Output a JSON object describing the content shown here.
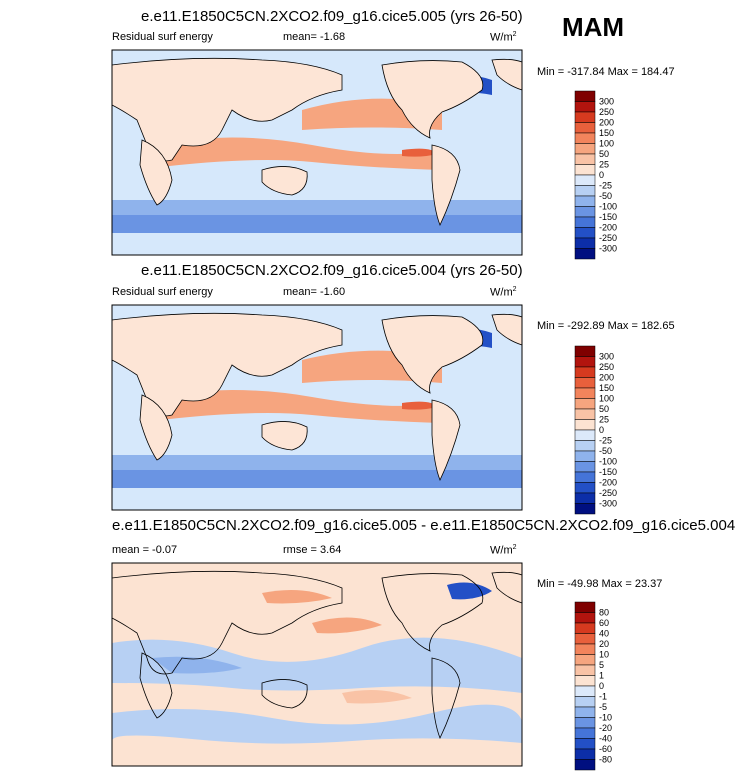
{
  "season": "MAM",
  "panels": [
    {
      "title": "e.e11.E1850C5CN.2XCO2.f09_g16.cice5.005 (yrs 26-50)",
      "left_label": "Residual surf energy",
      "mean_label": "mean=  -1.68",
      "rmse_label": "",
      "units": "W/m",
      "units_exp": "2",
      "minmax": "Min = -317.84 Max = 184.47",
      "colorbar_ticks": [
        "300",
        "250",
        "200",
        "150",
        "100",
        "50",
        "25",
        "0",
        "-25",
        "-50",
        "-100",
        "-150",
        "-200",
        "-250",
        "-300"
      ]
    },
    {
      "title": "e.e11.E1850C5CN.2XCO2.f09_g16.cice5.004 (yrs 26-50)",
      "left_label": "Residual surf energy",
      "mean_label": "mean=  -1.60",
      "rmse_label": "",
      "units": "W/m",
      "units_exp": "2",
      "minmax": "Min = -292.89 Max = 182.65",
      "colorbar_ticks": [
        "300",
        "250",
        "200",
        "150",
        "100",
        "50",
        "25",
        "0",
        "-25",
        "-50",
        "-100",
        "-150",
        "-200",
        "-250",
        "-300"
      ]
    },
    {
      "title": "e.e11.E1850C5CN.2XCO2.f09_g16.cice5.005 - e.e11.E1850C5CN.2XCO2.f09_g16.cice5.004",
      "left_label": "mean =  -0.07",
      "mean_label": "",
      "rmse_label": "rmse =   3.64",
      "units": "W/m",
      "units_exp": "2",
      "minmax": "Min = -49.98 Max =  23.37",
      "colorbar_ticks": [
        "80",
        "60",
        "40",
        "20",
        "10",
        "5",
        "1",
        "0",
        "-1",
        "-5",
        "-10",
        "-20",
        "-40",
        "-60",
        "-80"
      ]
    }
  ],
  "colors": {
    "ramp": [
      "#7f0000",
      "#b2140e",
      "#d63a1f",
      "#e8603c",
      "#f2845c",
      "#f6a57f",
      "#f9c3a6",
      "#fce3d2",
      "#dce9fa",
      "#b7d0f3",
      "#8fb3ec",
      "#6a94e3",
      "#4574d8",
      "#2350c6",
      "#0c2ea8",
      "#000f80"
    ],
    "ocean": "#d6e8fb",
    "land": "#fde5d6"
  }
}
